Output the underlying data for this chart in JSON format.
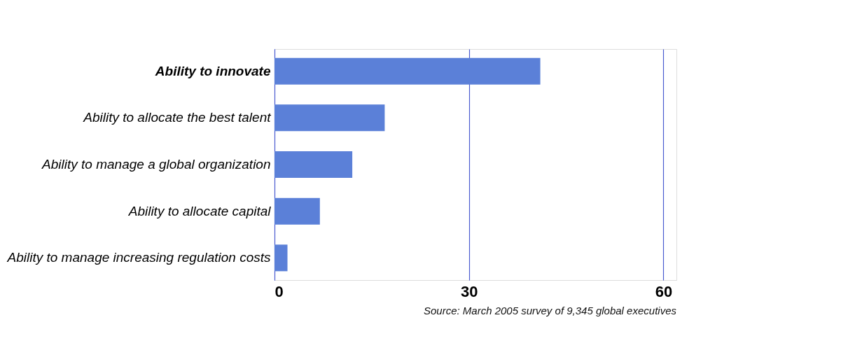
{
  "chart_data": {
    "type": "bar",
    "orientation": "horizontal",
    "categories": [
      "Ability to innovate",
      "Ability to allocate the best talent",
      "Ability to manage a global organization",
      "Ability to allocate capital",
      "Ability to manage increasing regulation costs"
    ],
    "values": [
      41,
      17,
      12,
      7,
      2
    ],
    "color": "#5b80d8",
    "xlim": [
      0,
      62
    ],
    "xticks": [
      0,
      30,
      60
    ],
    "grid": "x",
    "annotations": [
      "Source: March 2005 survey of 9,345 global executives"
    ]
  }
}
